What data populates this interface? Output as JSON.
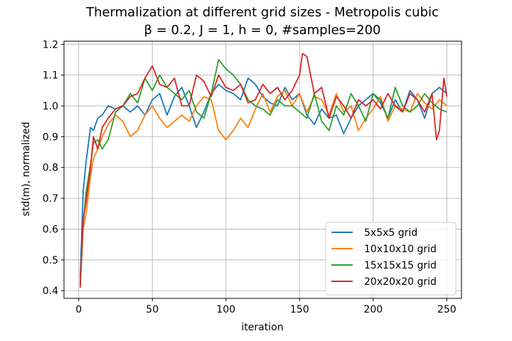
{
  "chart_data": {
    "type": "line",
    "title": "Thermalization at different grid sizes - Metropolis cubic",
    "subtitle": "β = 0.2, J = 1, h = 0, #samples=200",
    "xlabel": "iteration",
    "ylabel": "std(m), normalized",
    "xlim": [
      -10,
      260
    ],
    "ylim": [
      0.375,
      1.21
    ],
    "xticks": [
      0,
      50,
      100,
      150,
      200,
      250
    ],
    "yticks": [
      0.4,
      0.5,
      0.6,
      0.7,
      0.8,
      0.9,
      1.0,
      1.1,
      1.2
    ],
    "xtick_labels": [
      "0",
      "50",
      "100",
      "150",
      "200",
      "250"
    ],
    "ytick_labels": [
      "0.4",
      "0.5",
      "0.6",
      "0.7",
      "0.8",
      "0.9",
      "1.0",
      "1.1",
      "1.2"
    ],
    "grid": true,
    "legend_position": "lower-right",
    "series": [
      {
        "name": "5x5x5 grid",
        "color": "#1f77b4",
        "x": [
          1,
          3,
          5,
          8,
          10,
          13,
          16,
          20,
          25,
          30,
          35,
          40,
          45,
          50,
          55,
          60,
          65,
          70,
          75,
          80,
          85,
          90,
          95,
          100,
          105,
          110,
          115,
          120,
          125,
          130,
          135,
          140,
          145,
          150,
          155,
          160,
          165,
          170,
          175,
          180,
          185,
          190,
          195,
          200,
          205,
          210,
          215,
          220,
          225,
          230,
          235,
          240,
          245,
          250
        ],
        "y": [
          0.44,
          0.72,
          0.82,
          0.93,
          0.92,
          0.96,
          0.97,
          1.0,
          0.99,
          1.0,
          0.98,
          1.0,
          0.97,
          1.02,
          1.04,
          0.97,
          1.03,
          1.06,
          1.0,
          0.93,
          0.98,
          1.04,
          1.07,
          1.05,
          1.04,
          1.02,
          1.09,
          1.07,
          1.03,
          1.01,
          1.0,
          1.06,
          1.02,
          1.04,
          0.97,
          0.94,
          0.99,
          0.96,
          0.97,
          0.91,
          0.96,
          1.0,
          1.02,
          1.04,
          1.01,
          0.96,
          1.02,
          0.98,
          1.05,
          1.02,
          0.96,
          1.04,
          1.06,
          1.04
        ]
      },
      {
        "name": "10x10x10 grid",
        "color": "#ff7f0e",
        "x": [
          1,
          3,
          5,
          8,
          10,
          13,
          16,
          20,
          25,
          30,
          35,
          40,
          45,
          50,
          55,
          60,
          65,
          70,
          75,
          80,
          85,
          90,
          95,
          100,
          105,
          110,
          115,
          120,
          125,
          130,
          135,
          140,
          145,
          150,
          155,
          160,
          165,
          170,
          175,
          180,
          185,
          190,
          195,
          200,
          205,
          210,
          215,
          220,
          225,
          230,
          235,
          240,
          245,
          250
        ],
        "y": [
          0.42,
          0.6,
          0.65,
          0.77,
          0.83,
          0.86,
          0.9,
          0.94,
          0.97,
          0.95,
          0.9,
          0.92,
          0.97,
          1.0,
          0.96,
          0.93,
          0.95,
          0.97,
          0.95,
          1.0,
          1.03,
          1.02,
          0.92,
          0.89,
          0.92,
          0.96,
          0.93,
          0.99,
          1.04,
          0.98,
          1.03,
          1.05,
          1.0,
          1.04,
          0.98,
          1.03,
          1.02,
          0.97,
          1.04,
          0.98,
          1.0,
          0.92,
          0.96,
          0.99,
          1.03,
          0.95,
          1.0,
          0.99,
          0.98,
          1.04,
          1.01,
          0.99,
          1.02,
          1.0
        ]
      },
      {
        "name": "15x15x15 grid",
        "color": "#2ca02c",
        "x": [
          1,
          3,
          5,
          8,
          10,
          13,
          16,
          20,
          25,
          30,
          35,
          40,
          45,
          50,
          55,
          60,
          65,
          70,
          75,
          80,
          85,
          90,
          95,
          100,
          105,
          110,
          115,
          120,
          125,
          130,
          135,
          140,
          145,
          150,
          155,
          160,
          165,
          170,
          175,
          180,
          185,
          190,
          195,
          200,
          205,
          210,
          215,
          220,
          225,
          230,
          235,
          240,
          245,
          250
        ],
        "y": [
          0.42,
          0.62,
          0.72,
          0.81,
          0.88,
          0.89,
          0.86,
          0.89,
          0.98,
          1.0,
          1.04,
          1.01,
          1.09,
          1.05,
          1.1,
          1.06,
          1.04,
          1.02,
          1.05,
          0.98,
          0.96,
          1.04,
          1.15,
          1.12,
          1.1,
          1.07,
          1.02,
          1.0,
          0.99,
          0.97,
          1.02,
          1.0,
          1.0,
          0.98,
          0.96,
          1.04,
          0.95,
          0.92,
          1.0,
          0.97,
          1.04,
          1.0,
          0.95,
          1.04,
          1.02,
          0.96,
          1.06,
          1.0,
          0.98,
          1.0,
          1.04,
          1.01,
          0.99,
          0.98
        ]
      },
      {
        "name": "20x20x20 grid",
        "color": "#d62728",
        "x": [
          1,
          3,
          5,
          8,
          10,
          13,
          16,
          20,
          25,
          30,
          35,
          40,
          45,
          50,
          55,
          60,
          65,
          70,
          75,
          80,
          85,
          90,
          95,
          100,
          105,
          110,
          115,
          120,
          125,
          130,
          135,
          140,
          145,
          150,
          152,
          155,
          160,
          165,
          170,
          175,
          180,
          185,
          190,
          195,
          200,
          205,
          210,
          215,
          220,
          225,
          230,
          235,
          240,
          243,
          245,
          248,
          250
        ],
        "y": [
          0.41,
          0.63,
          0.69,
          0.8,
          0.9,
          0.86,
          0.93,
          0.96,
          0.99,
          1.0,
          1.03,
          1.04,
          1.09,
          1.13,
          1.07,
          1.06,
          1.09,
          1.0,
          1.0,
          1.1,
          1.08,
          1.03,
          1.1,
          1.06,
          1.05,
          1.07,
          1.01,
          1.02,
          1.07,
          1.04,
          1.06,
          1.02,
          1.05,
          1.1,
          1.17,
          1.16,
          1.04,
          1.06,
          0.96,
          1.03,
          1.0,
          0.96,
          1.02,
          1.0,
          1.02,
          0.99,
          1.04,
          1.0,
          0.98,
          1.04,
          1.02,
          0.98,
          1.04,
          0.89,
          0.92,
          1.09,
          1.03
        ]
      }
    ]
  }
}
